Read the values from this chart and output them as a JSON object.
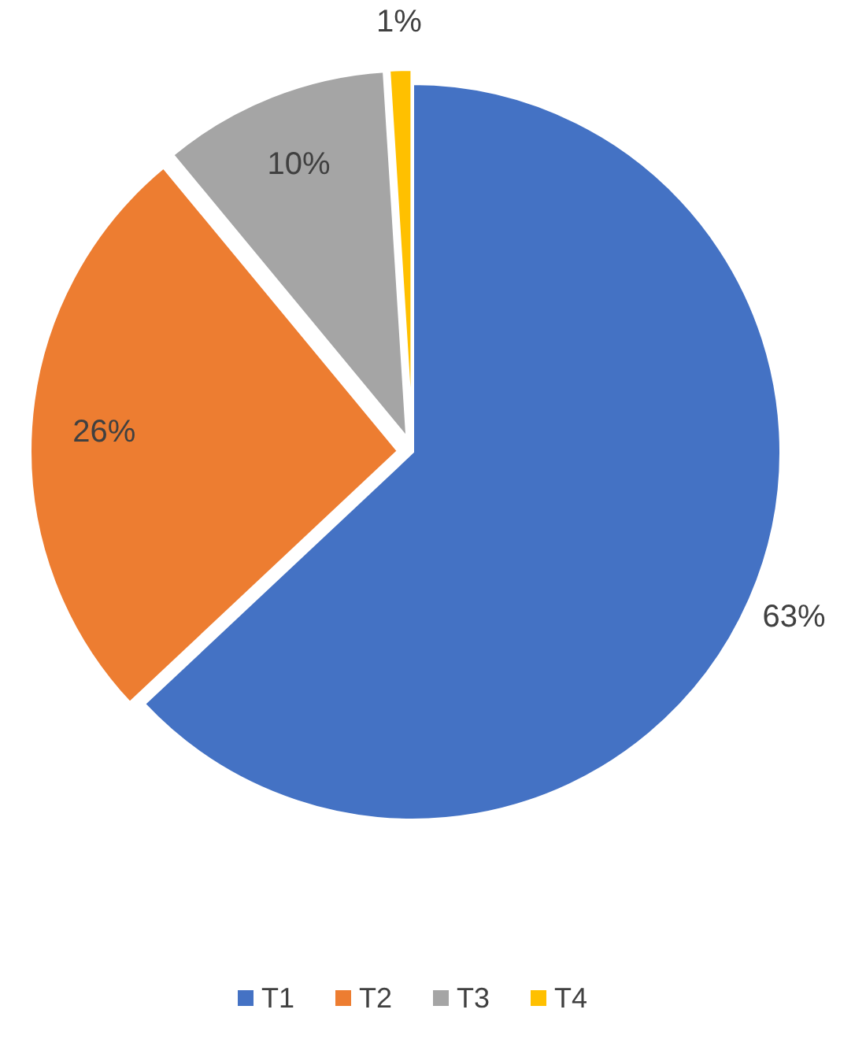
{
  "chart_data": {
    "type": "pie",
    "categories": [
      "T1",
      "T2",
      "T3",
      "T4"
    ],
    "values": [
      63,
      26,
      10,
      1
    ],
    "colors": [
      "#4472c4",
      "#ed7d31",
      "#a5a5a5",
      "#ffc000"
    ],
    "value_labels": [
      "63%",
      "26%",
      "10%",
      "1%"
    ],
    "legend": "bottom"
  }
}
